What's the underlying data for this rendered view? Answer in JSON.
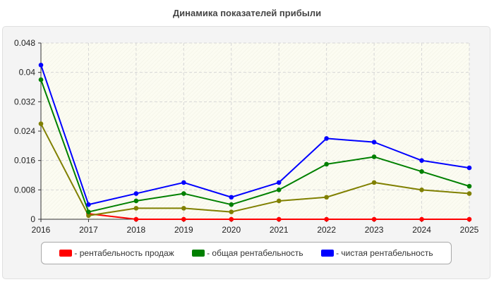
{
  "chart_data": {
    "type": "line",
    "title": "Динамика показателей прибыли",
    "categories": [
      "2016",
      "2017",
      "2018",
      "2019",
      "2020",
      "2021",
      "2022",
      "2023",
      "2024",
      "2025"
    ],
    "ylim": [
      0,
      0.048
    ],
    "yticks": [
      "0",
      "0.008",
      "0.016",
      "0.024",
      "0.032",
      "0.04",
      "0.048"
    ],
    "grid": true,
    "legend_position": "bottom",
    "series": [
      {
        "name": "- рентабельность продаж",
        "color": "#ff0000",
        "values": [
          null,
          0.0015,
          0,
          0,
          0,
          0,
          0,
          0,
          0,
          0
        ]
      },
      {
        "name": "",
        "color": "#808000",
        "values": [
          0.026,
          0.001,
          0.003,
          0.003,
          0.002,
          0.005,
          0.006,
          0.01,
          0.008,
          0.007
        ]
      },
      {
        "name": "- общая рентабельность",
        "color": "#008000",
        "values": [
          0.038,
          0.002,
          0.005,
          0.007,
          0.004,
          0.008,
          0.015,
          0.017,
          0.013,
          0.009
        ]
      },
      {
        "name": "- чистая рентабельность",
        "color": "#0000ff",
        "values": [
          0.042,
          0.004,
          0.007,
          0.01,
          0.006,
          0.01,
          0.022,
          0.021,
          0.016,
          0.014
        ]
      }
    ]
  }
}
